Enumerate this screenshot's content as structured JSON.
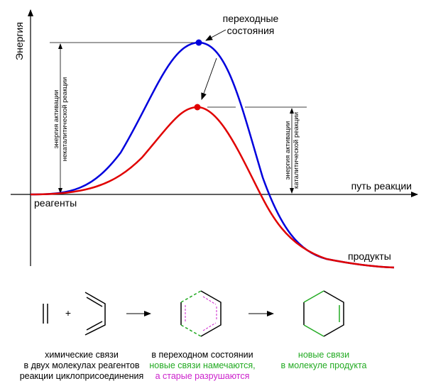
{
  "axes": {
    "y_label": "Энергия",
    "x_label": "путь реакции"
  },
  "labels": {
    "reactants": "реагенты",
    "products": "продукты",
    "transition_states": [
      "переходные",
      "состояния"
    ],
    "uncatalyzed_activation": [
      "энергия активации",
      "некаталитической реакции"
    ],
    "catalyzed_activation": [
      "энергия активации",
      "каталитической реакции"
    ]
  },
  "captions": {
    "reactants": [
      "химические связи",
      "в двух молекулах реагентов",
      "реакции циклоприсоединения"
    ],
    "transition": [
      "в переходном состоянии",
      "новые связи намечаются,",
      "а старые разрушаются"
    ],
    "product": [
      "новые связи",
      "в молекуле продукта"
    ]
  },
  "molecules": {
    "plus": "+"
  }
}
